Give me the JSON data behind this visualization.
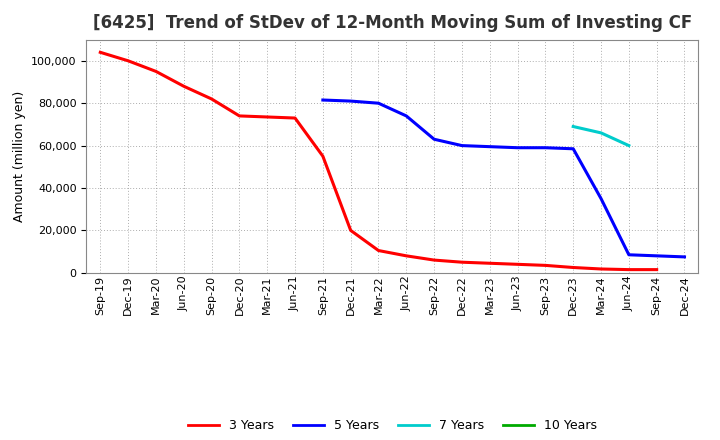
{
  "title": "[6425]  Trend of StDev of 12-Month Moving Sum of Investing CF",
  "ylabel": "Amount (million yen)",
  "background_color": "#ffffff",
  "plot_bg_color": "#ffffff",
  "grid_color": "#999999",
  "ylim": [
    0,
    110000
  ],
  "yticks": [
    0,
    20000,
    40000,
    60000,
    80000,
    100000
  ],
  "x_labels": [
    "Sep-19",
    "Dec-19",
    "Mar-20",
    "Jun-20",
    "Sep-20",
    "Dec-20",
    "Mar-21",
    "Jun-21",
    "Sep-21",
    "Dec-21",
    "Mar-22",
    "Jun-22",
    "Sep-22",
    "Dec-22",
    "Mar-23",
    "Jun-23",
    "Sep-23",
    "Dec-23",
    "Mar-24",
    "Jun-24",
    "Sep-24",
    "Dec-24"
  ],
  "series_3yr": {
    "label": "3 Years",
    "color": "#ff0000",
    "x": [
      "Sep-19",
      "Dec-19",
      "Mar-20",
      "Jun-20",
      "Sep-20",
      "Dec-20",
      "Mar-21",
      "Jun-21",
      "Sep-21",
      "Dec-21",
      "Mar-22",
      "Jun-22",
      "Sep-22",
      "Dec-22",
      "Mar-23",
      "Jun-23",
      "Sep-23",
      "Dec-23",
      "Mar-24",
      "Jun-24",
      "Sep-24"
    ],
    "y": [
      104000,
      100000,
      95000,
      88000,
      82000,
      74000,
      73500,
      73000,
      55000,
      20000,
      10500,
      8000,
      6000,
      5000,
      4500,
      4000,
      3500,
      2500,
      1800,
      1500,
      1500
    ]
  },
  "series_5yr": {
    "label": "5 Years",
    "color": "#0000ff",
    "x": [
      "Sep-21",
      "Dec-21",
      "Mar-22",
      "Jun-22",
      "Sep-22",
      "Dec-22",
      "Mar-23",
      "Jun-23",
      "Sep-23",
      "Dec-23",
      "Mar-24",
      "Jun-24",
      "Sep-24",
      "Dec-24"
    ],
    "y": [
      81500,
      81000,
      80000,
      74000,
      63000,
      60000,
      59500,
      59000,
      59000,
      58500,
      35000,
      8500,
      8000,
      7500
    ]
  },
  "series_7yr": {
    "label": "7 Years",
    "color": "#00cccc",
    "x": [
      "Dec-23",
      "Mar-24",
      "Jun-24"
    ],
    "y": [
      69000,
      66000,
      60000
    ]
  },
  "series_10yr": {
    "label": "10 Years",
    "color": "#00aa00",
    "x": [
      "Jun-24"
    ],
    "y": [
      60000
    ]
  },
  "title_fontsize": 12,
  "axis_label_fontsize": 9,
  "tick_fontsize": 8,
  "legend_fontsize": 9
}
